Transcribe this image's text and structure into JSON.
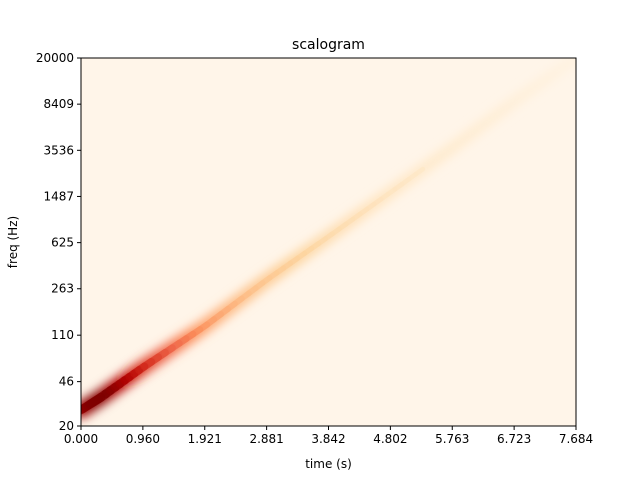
{
  "chart_data": {
    "type": "heatmap",
    "title": "scalogram",
    "xlabel": "time (s)",
    "ylabel": "freq (Hz)",
    "xlim": [
      0.0,
      7.684
    ],
    "ylim": [
      20,
      20000
    ],
    "yscale": "log",
    "xticks": [
      "0.000",
      "0.960",
      "1.921",
      "2.881",
      "3.842",
      "4.802",
      "5.763",
      "6.723",
      "7.684"
    ],
    "yticks": [
      "20",
      "46",
      "110",
      "263",
      "625",
      "1487",
      "3536",
      "8409",
      "20000"
    ],
    "colormap": "OrRd",
    "background_color": "#fff5e9",
    "ridge": {
      "description": "exponential chirp ridge, frequency rising with time",
      "points": [
        {
          "t": 0.0,
          "f": 27,
          "intensity": 0.9
        },
        {
          "t": 0.3,
          "f": 34,
          "intensity": 1.0
        },
        {
          "t": 0.96,
          "f": 60,
          "intensity": 0.75
        },
        {
          "t": 1.921,
          "f": 130,
          "intensity": 0.45
        },
        {
          "t": 2.881,
          "f": 310,
          "intensity": 0.3
        },
        {
          "t": 3.842,
          "f": 700,
          "intensity": 0.2
        },
        {
          "t": 4.802,
          "f": 1600,
          "intensity": 0.14
        },
        {
          "t": 5.763,
          "f": 3700,
          "intensity": 0.1
        },
        {
          "t": 6.723,
          "f": 8800,
          "intensity": 0.07
        },
        {
          "t": 7.684,
          "f": 20000,
          "intensity": 0.04
        }
      ]
    },
    "grid": false,
    "legend": "none"
  }
}
